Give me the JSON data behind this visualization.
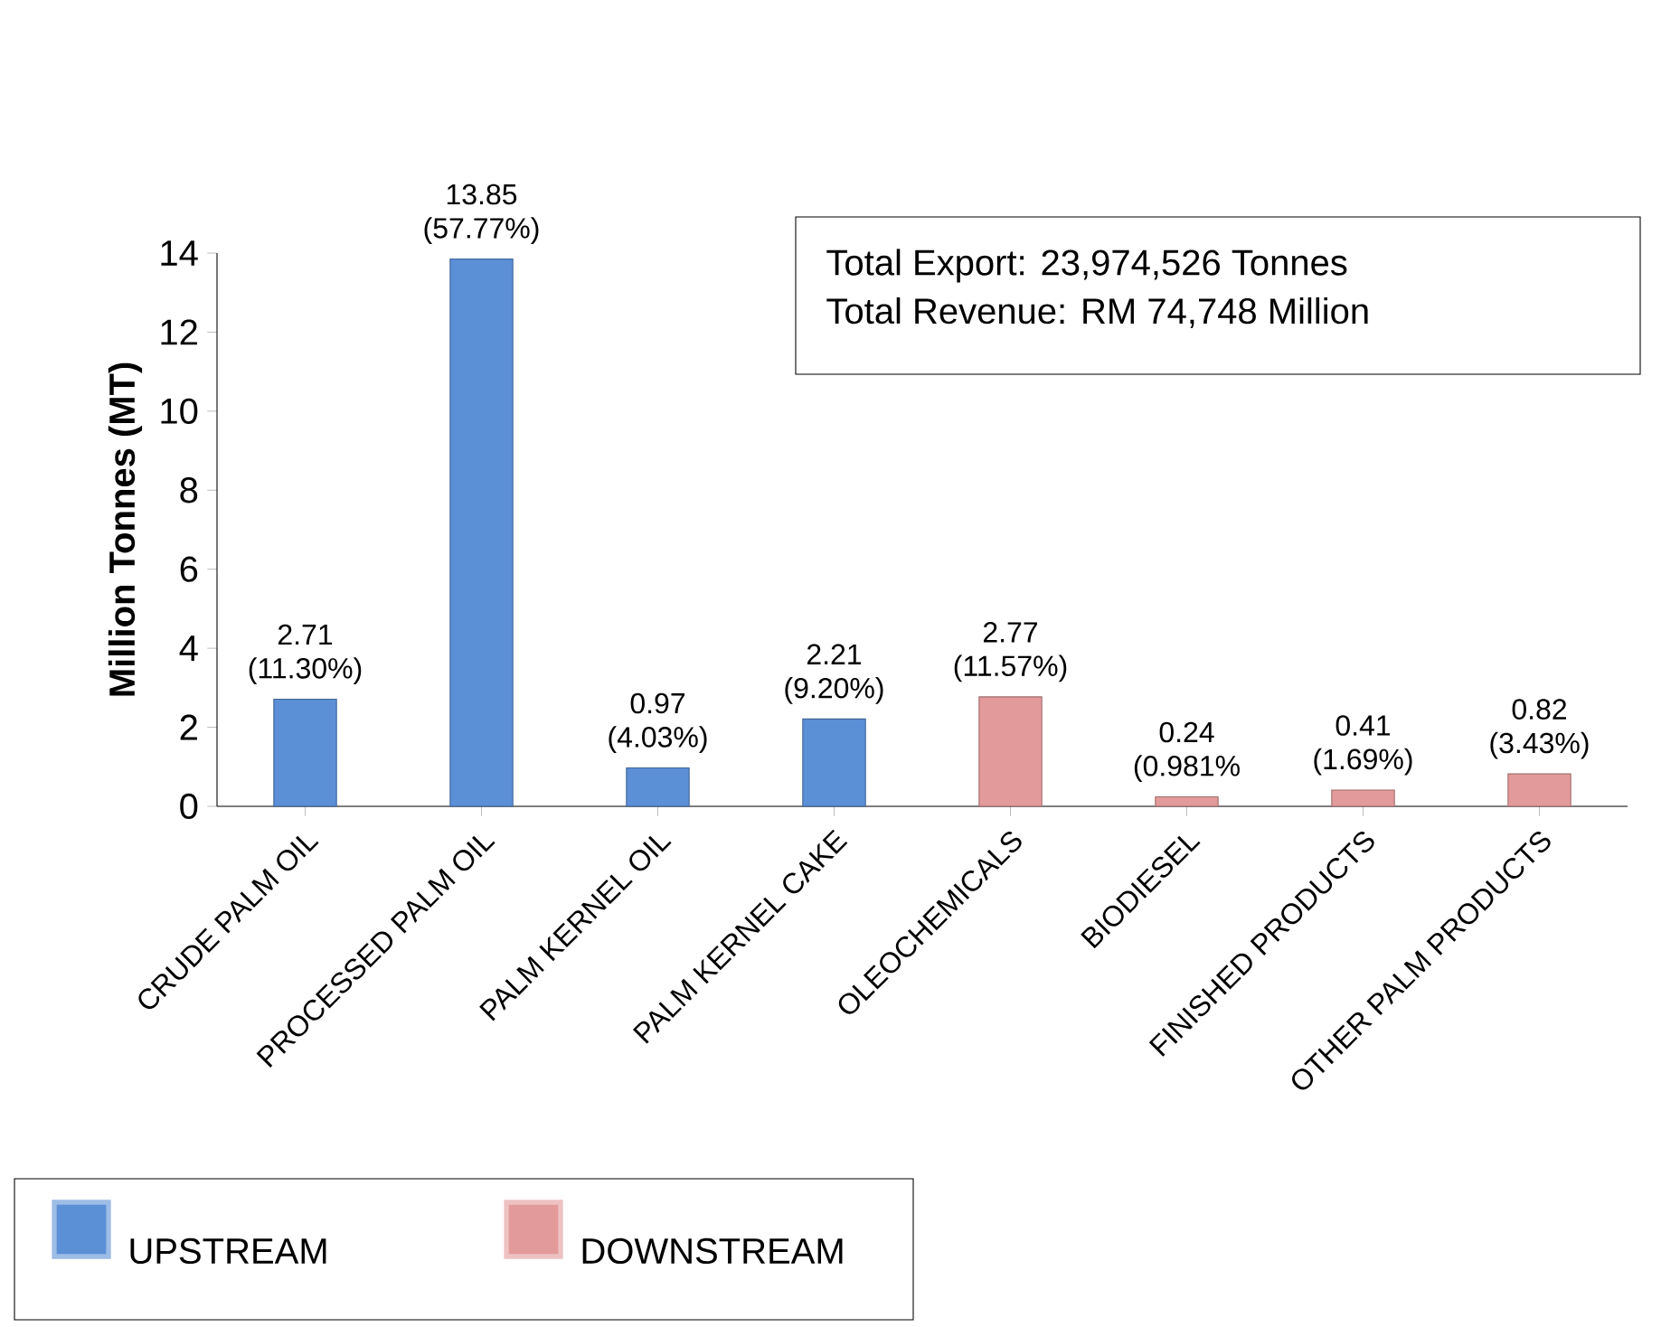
{
  "chart_data": {
    "type": "bar",
    "ylabel": "Million Tonnes (MT)",
    "categories": [
      "CRUDE PALM OIL",
      "PROCESSED PALM OIL",
      "PALM KERNEL OIL",
      "PALM KERNEL CAKE",
      "OLEOCHEMICALS",
      "BIODIESEL",
      "FINISHED PRODUCTS",
      "OTHER PALM PRODUCTS"
    ],
    "series": [
      {
        "name": "UPSTREAM",
        "color": "#5b8fd6",
        "values": [
          2.71,
          13.85,
          0.97,
          2.21,
          null,
          null,
          null,
          null
        ],
        "value_labels": [
          "2.71 (11.30%)",
          "13.85 (57.77%)",
          "0.97 (4.03%)",
          "2.21 (9.20%)",
          null,
          null,
          null,
          null
        ]
      },
      {
        "name": "DOWNSTREAM",
        "color": "#e39a9a",
        "values": [
          null,
          null,
          null,
          null,
          2.77,
          0.24,
          0.41,
          0.82
        ],
        "value_labels": [
          null,
          null,
          null,
          null,
          "2.77 (11.57%)",
          "0.24 (0.981%",
          "0.41 (1.69%)",
          "0.82 (3.43%)"
        ]
      }
    ],
    "ylim": [
      0,
      14
    ],
    "yticks": [
      0,
      2,
      4,
      6,
      8,
      10,
      12,
      14
    ],
    "legend": "bottom left",
    "annotations": [
      "Total Export: 23,974,526 Tonnes",
      "Total Revenue: RM 74,748 Million"
    ]
  }
}
